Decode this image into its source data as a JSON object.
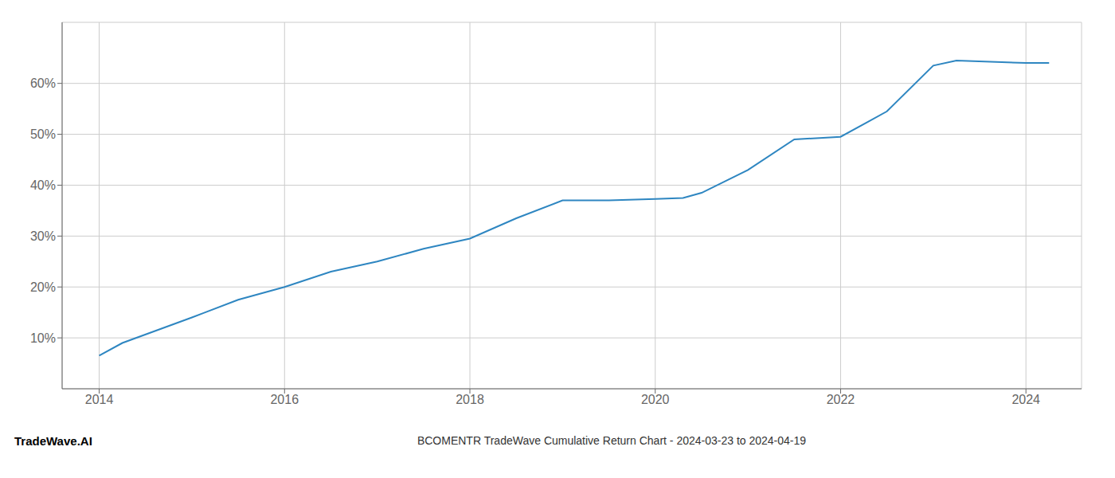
{
  "chart_data": {
    "type": "line",
    "title": "BCOMENTR TradeWave Cumulative Return Chart - 2024-03-23 to 2024-04-19",
    "annotations": [
      "TradeWave.AI"
    ],
    "x": [
      2014,
      2014.25,
      2015,
      2015.5,
      2016,
      2016.5,
      2017,
      2017.5,
      2018,
      2018.5,
      2019,
      2019.5,
      2020,
      2020.3,
      2020.5,
      2021,
      2021.5,
      2022,
      2022.3,
      2022.5,
      2023,
      2023.25,
      2024,
      2024.25
    ],
    "values": [
      6.5,
      9.0,
      14.0,
      17.5,
      20.0,
      23.0,
      25.0,
      27.5,
      29.5,
      33.5,
      37.0,
      37.0,
      37.3,
      37.5,
      38.5,
      43.0,
      49.0,
      49.5,
      52.5,
      54.5,
      63.5,
      64.5,
      64.0,
      64.0
    ],
    "color": "#2e86c1",
    "xlim": [
      2013.6,
      2024.6
    ],
    "ylim": [
      0,
      72
    ],
    "xticks": [
      2014,
      2016,
      2018,
      2020,
      2022,
      2024
    ],
    "yticks": [
      {
        "value": 10,
        "label": "10%"
      },
      {
        "value": 20,
        "label": "20%"
      },
      {
        "value": 30,
        "label": "30%"
      },
      {
        "value": 40,
        "label": "40%"
      },
      {
        "value": 50,
        "label": "50%"
      },
      {
        "value": 60,
        "label": "60%"
      }
    ],
    "grid": true
  }
}
